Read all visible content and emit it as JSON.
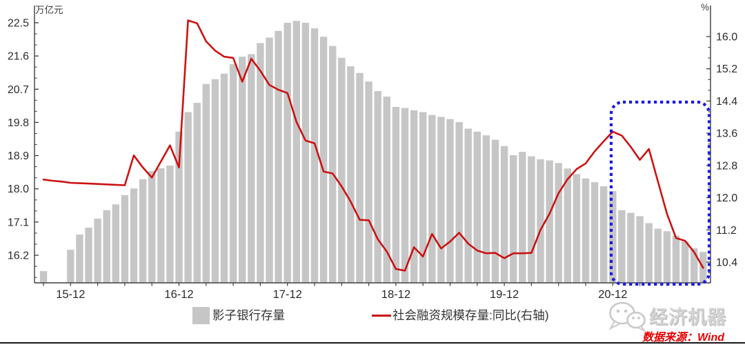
{
  "chart_data": {
    "type": "bar+line combo, dual axis",
    "x_months": [
      "2015-09",
      "2015-10",
      "2015-11",
      "2015-12",
      "2016-01",
      "2016-02",
      "2016-03",
      "2016-04",
      "2016-05",
      "2016-06",
      "2016-07",
      "2016-08",
      "2016-09",
      "2016-10",
      "2016-11",
      "2016-12",
      "2017-01",
      "2017-02",
      "2017-03",
      "2017-04",
      "2017-05",
      "2017-06",
      "2017-07",
      "2017-08",
      "2017-09",
      "2017-10",
      "2017-11",
      "2017-12",
      "2018-01",
      "2018-02",
      "2018-03",
      "2018-04",
      "2018-05",
      "2018-06",
      "2018-07",
      "2018-08",
      "2018-09",
      "2018-10",
      "2018-11",
      "2018-12",
      "2019-01",
      "2019-02",
      "2019-03",
      "2019-04",
      "2019-05",
      "2019-06",
      "2019-07",
      "2019-08",
      "2019-09",
      "2019-10",
      "2019-11",
      "2019-12",
      "2020-01",
      "2020-02",
      "2020-03",
      "2020-04",
      "2020-05",
      "2020-06",
      "2020-07",
      "2020-08",
      "2020-09",
      "2020-10",
      "2020-11",
      "2020-12",
      "2021-01",
      "2021-02",
      "2021-03",
      "2021-04",
      "2021-05",
      "2021-06",
      "2021-07",
      "2021-08",
      "2021-09",
      "2021-10"
    ],
    "series": [
      {
        "name": "影子银行存量",
        "type": "bar",
        "axis": "left",
        "color": "#c6c6c6",
        "values": [
          15.77,
          null,
          null,
          16.35,
          16.76,
          16.95,
          17.19,
          17.42,
          17.58,
          17.83,
          18.01,
          18.26,
          18.48,
          18.56,
          18.63,
          19.55,
          20.08,
          20.33,
          20.84,
          20.97,
          21.12,
          21.38,
          21.58,
          21.65,
          21.95,
          22.1,
          22.28,
          22.5,
          22.55,
          22.5,
          22.35,
          22.12,
          21.87,
          21.55,
          21.32,
          21.14,
          20.91,
          20.65,
          20.5,
          20.22,
          20.19,
          20.13,
          20.08,
          20.0,
          19.95,
          19.89,
          19.81,
          19.63,
          19.55,
          19.45,
          19.33,
          19.16,
          18.91,
          19.0,
          18.88,
          18.8,
          18.77,
          18.7,
          18.55,
          18.4,
          18.28,
          18.18,
          18.07,
          17.94,
          17.42,
          17.35,
          17.26,
          17.07,
          16.92,
          16.85,
          16.73,
          16.57,
          16.39,
          16.29
        ]
      },
      {
        "name": "社会融资规模存量:同比(右轴)",
        "type": "line",
        "axis": "right",
        "color": "#cc1111",
        "values": [
          12.45,
          12.42,
          12.4,
          12.37,
          12.36,
          12.35,
          12.34,
          12.33,
          12.32,
          12.31,
          13.05,
          12.75,
          12.5,
          12.9,
          13.3,
          12.75,
          16.4,
          16.33,
          15.88,
          15.65,
          15.5,
          15.47,
          14.88,
          15.45,
          15.15,
          14.8,
          14.68,
          14.6,
          13.88,
          13.42,
          13.35,
          12.65,
          12.6,
          12.28,
          11.9,
          11.45,
          11.44,
          10.97,
          10.66,
          10.23,
          10.19,
          10.77,
          10.54,
          11.1,
          10.74,
          10.91,
          11.13,
          10.86,
          10.69,
          10.62,
          10.63,
          10.5,
          10.62,
          10.62,
          10.63,
          11.2,
          11.6,
          12.11,
          12.46,
          12.71,
          12.85,
          13.15,
          13.4,
          13.64,
          13.54,
          13.26,
          12.94,
          13.21,
          12.4,
          11.6,
          11.0,
          10.93,
          10.65,
          10.26
        ]
      }
    ],
    "left_axis": {
      "unit": "万亿元",
      "tick_labels": [
        "22.5",
        "21.6",
        "20.7",
        "19.8",
        "18.9",
        "18.0",
        "17.1",
        "16.2"
      ],
      "minor_step": 0.3,
      "range_estimate": [
        15.45,
        22.69
      ]
    },
    "right_axis": {
      "unit": "%",
      "tick_labels": [
        "16.0",
        "15.2",
        "14.4",
        "13.6",
        "12.8",
        "12.0",
        "11.2",
        "10.4"
      ],
      "minor_step": 0.2667,
      "range_estimate": [
        9.89,
        16.51
      ]
    },
    "x_axis": {
      "year_labels": [
        "15-12",
        "16-12",
        "17-12",
        "18-12",
        "19-12",
        "20-12"
      ],
      "year_label_month_indices": [
        3,
        15,
        27,
        39,
        51,
        63
      ],
      "tick_every_months": 3,
      "grid": "off"
    },
    "annotation_box": {
      "shape": "rounded-rect",
      "line_style": "dotted",
      "color": "#1a1ae6",
      "covers_months": [
        "2020-12",
        "2021-10"
      ]
    },
    "legend_position": "bottom"
  },
  "legend": {
    "bar_label": "影子银行存量",
    "line_label": "社会融资规模存量:同比(右轴)"
  },
  "footer": {
    "brand": "经济机器",
    "source": "数据来源：Wind"
  },
  "units": {
    "left": "万亿元",
    "right": "%"
  }
}
